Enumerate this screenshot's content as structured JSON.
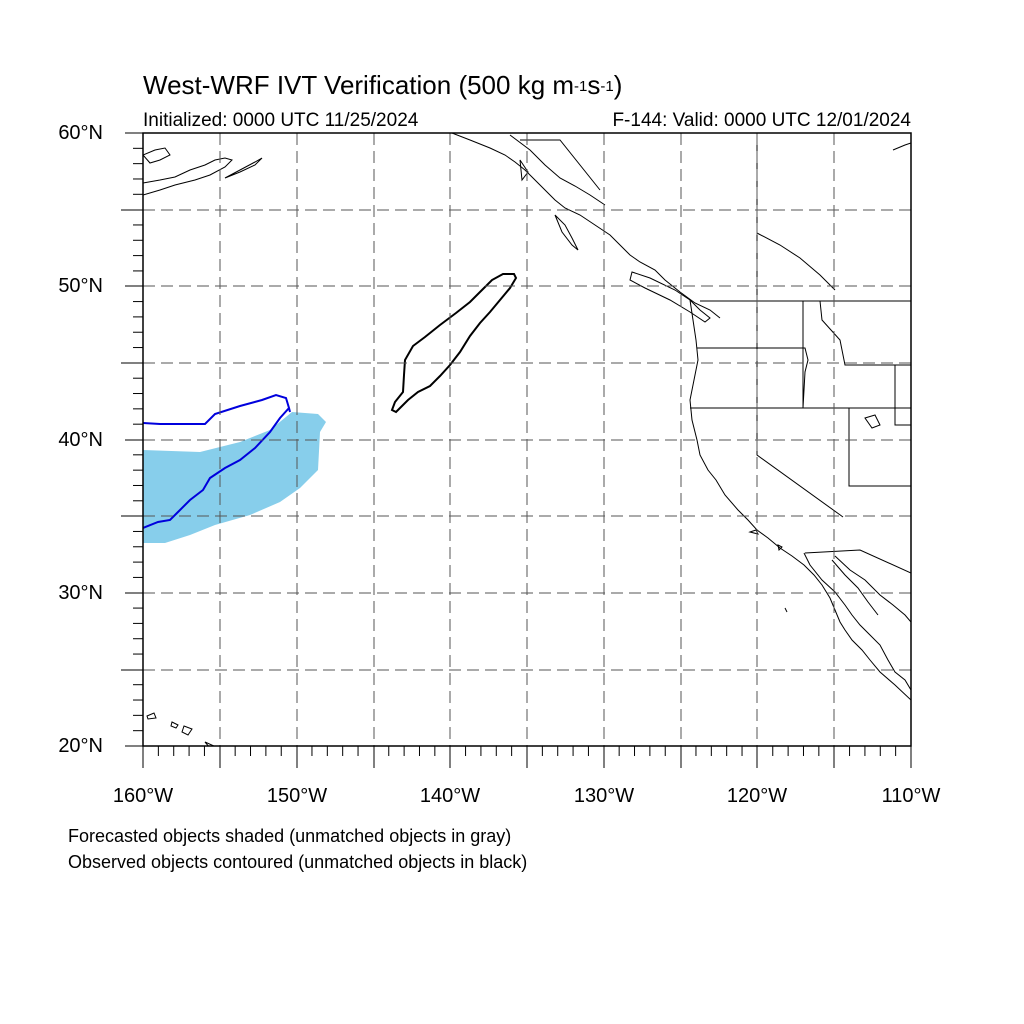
{
  "title": {
    "main": "West-WRF IVT Verification (500 kg m",
    "exp1": "-1",
    "mid": "s",
    "exp2": "-1",
    "end": ")"
  },
  "subtitle": {
    "initialized": "Initialized: 0000 UTC 11/25/2024",
    "valid": "F-144: Valid: 0000 UTC 12/01/2024"
  },
  "axes": {
    "lat_labels": [
      "60°N",
      "50°N",
      "40°N",
      "30°N",
      "20°N"
    ],
    "lon_labels": [
      "160°W",
      "150°W",
      "140°W",
      "130°W",
      "120°W",
      "110°W"
    ],
    "lat_range": [
      20,
      60
    ],
    "lon_range": [
      -160,
      -110
    ],
    "grid": "dashed, every 5 degrees"
  },
  "legend": {
    "line1": "Forecasted objects shaded (unmatched objects in gray)",
    "line2": "Observed objects contoured (unmatched objects in black)"
  },
  "colors": {
    "forecast_matched_fill": "#87CEEB",
    "observed_matched_contour": "#0000DD",
    "observed_unmatched_contour": "#000000",
    "coastline": "#000000",
    "grid": "#555555"
  }
}
